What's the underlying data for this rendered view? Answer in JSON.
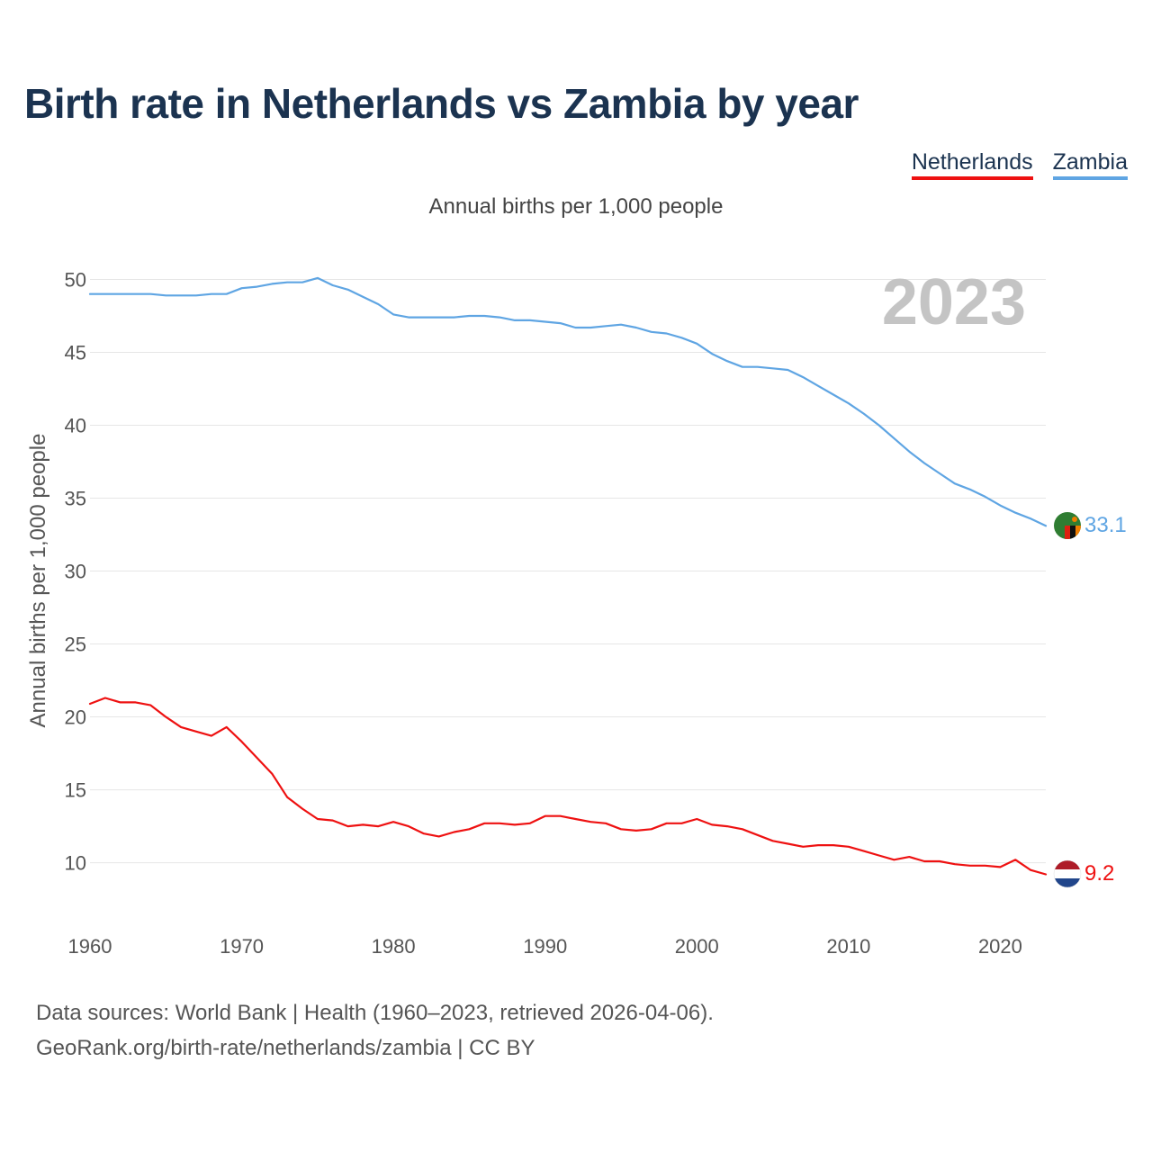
{
  "header": {
    "title": "Birth rate in Netherlands vs Zambia by year",
    "subtitle": "Annual births per 1,000 people"
  },
  "legend": {
    "items": [
      {
        "label": "Netherlands",
        "color": "#ee1111"
      },
      {
        "label": "Zambia",
        "color": "#5fa5e3"
      }
    ]
  },
  "footer": {
    "line1": "Data sources: World Bank | Health (1960–2023, retrieved 2026-04-06).",
    "line2": "GeoRank.org/birth-rate/netherlands/zambia | CC BY"
  },
  "chart_data": {
    "type": "line",
    "title": "Birth rate in Netherlands vs Zambia by year",
    "ylabel": "Annual births per 1,000 people",
    "xlabel": "",
    "year_label": "2023",
    "xlim": [
      1960,
      2023
    ],
    "ylim": [
      5.9,
      52.5
    ],
    "x_ticks": [
      1960,
      1970,
      1980,
      1990,
      2000,
      2010,
      2020
    ],
    "y_ticks": [
      10,
      15,
      20,
      25,
      30,
      35,
      40,
      45,
      50
    ],
    "grid": true,
    "x": [
      1960,
      1961,
      1962,
      1963,
      1964,
      1965,
      1966,
      1967,
      1968,
      1969,
      1970,
      1971,
      1972,
      1973,
      1974,
      1975,
      1976,
      1977,
      1978,
      1979,
      1980,
      1981,
      1982,
      1983,
      1984,
      1985,
      1986,
      1987,
      1988,
      1989,
      1990,
      1991,
      1992,
      1993,
      1994,
      1995,
      1996,
      1997,
      1998,
      1999,
      2000,
      2001,
      2002,
      2003,
      2004,
      2005,
      2006,
      2007,
      2008,
      2009,
      2010,
      2011,
      2012,
      2013,
      2014,
      2015,
      2016,
      2017,
      2018,
      2019,
      2020,
      2021,
      2022,
      2023
    ],
    "series": [
      {
        "name": "Zambia",
        "color": "#5fa5e3",
        "end_label": "33.1",
        "values": [
          49.0,
          49.0,
          49.0,
          49.0,
          49.0,
          48.9,
          48.9,
          48.9,
          49.0,
          49.0,
          49.4,
          49.5,
          49.7,
          49.8,
          49.8,
          50.1,
          49.6,
          49.3,
          48.8,
          48.3,
          47.6,
          47.4,
          47.4,
          47.4,
          47.4,
          47.5,
          47.5,
          47.4,
          47.2,
          47.2,
          47.1,
          47.0,
          46.7,
          46.7,
          46.8,
          46.9,
          46.7,
          46.4,
          46.3,
          46.0,
          45.6,
          44.9,
          44.4,
          44.0,
          44.0,
          43.9,
          43.8,
          43.3,
          42.7,
          42.1,
          41.5,
          40.8,
          40.0,
          39.1,
          38.2,
          37.4,
          36.7,
          36.0,
          35.6,
          35.1,
          34.5,
          34.0,
          33.6,
          33.1
        ]
      },
      {
        "name": "Netherlands",
        "color": "#ee1111",
        "end_label": "9.2",
        "values": [
          20.9,
          21.3,
          21.0,
          21.0,
          20.8,
          20.0,
          19.3,
          19.0,
          18.7,
          19.3,
          18.3,
          17.2,
          16.1,
          14.5,
          13.7,
          13.0,
          12.9,
          12.5,
          12.6,
          12.5,
          12.8,
          12.5,
          12.0,
          11.8,
          12.1,
          12.3,
          12.7,
          12.7,
          12.6,
          12.7,
          13.2,
          13.2,
          13.0,
          12.8,
          12.7,
          12.3,
          12.2,
          12.3,
          12.7,
          12.7,
          13.0,
          12.6,
          12.5,
          12.3,
          11.9,
          11.5,
          11.3,
          11.1,
          11.2,
          11.2,
          11.1,
          10.8,
          10.5,
          10.2,
          10.4,
          10.1,
          10.1,
          9.9,
          9.8,
          9.8,
          9.7,
          10.2,
          9.5,
          9.2
        ]
      }
    ]
  }
}
